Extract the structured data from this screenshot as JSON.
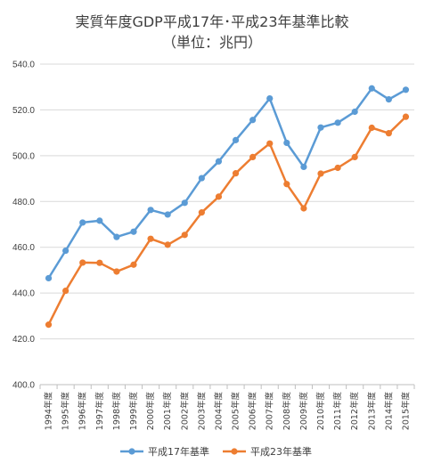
{
  "chart_data": {
    "type": "line",
    "title_line1": "実質年度GDP平成17年･平成23年基準比較",
    "title_line2": "（単位：兆円）",
    "xlabel": "",
    "ylabel": "",
    "ylim": [
      400,
      540
    ],
    "yticks": [
      "400.0",
      "420.0",
      "440.0",
      "460.0",
      "480.0",
      "500.0",
      "520.0",
      "540.0"
    ],
    "grid": true,
    "legend": "bottom",
    "categories": [
      "1994年度",
      "1995年度",
      "1996年度",
      "1997年度",
      "1998年度",
      "1999年度",
      "2000年度",
      "2001年度",
      "2002年度",
      "2003年度",
      "2004年度",
      "2005年度",
      "2006年度",
      "2007年度",
      "2008年度",
      "2009年度",
      "2010年度",
      "2011年度",
      "2012年度",
      "2013年度",
      "2014年度",
      "2015年度"
    ],
    "series": [
      {
        "name": "平成17年基準",
        "color": "#5b9bd5",
        "values": [
          446.5,
          458.5,
          470.8,
          471.6,
          464.5,
          466.8,
          476.3,
          474.3,
          479.4,
          490.2,
          497.5,
          506.8,
          515.6,
          525.0,
          505.6,
          495.1,
          512.3,
          514.4,
          519.2,
          529.4,
          524.6,
          528.8
        ]
      },
      {
        "name": "平成23年基準",
        "color": "#ed7d31",
        "values": [
          426.2,
          441.0,
          453.3,
          453.2,
          449.4,
          452.4,
          463.7,
          461.1,
          465.4,
          475.2,
          482.1,
          492.3,
          499.4,
          505.3,
          487.6,
          477.0,
          492.2,
          494.7,
          499.4,
          512.2,
          509.8,
          517.0
        ]
      }
    ]
  }
}
